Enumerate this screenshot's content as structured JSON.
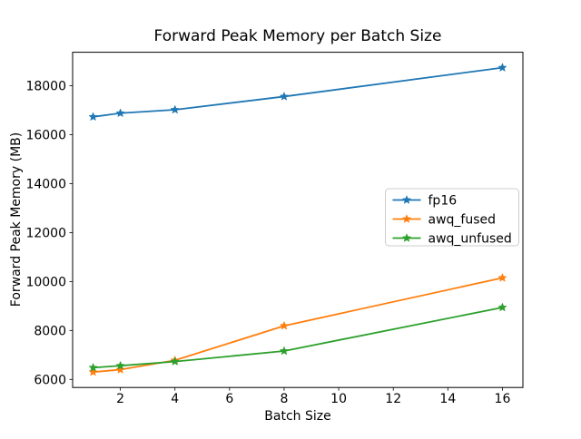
{
  "chart_data": {
    "type": "line",
    "title": "Forward Peak Memory per Batch Size",
    "xlabel": "Batch Size",
    "ylabel": "Forward Peak Memory (MB)",
    "x": [
      1,
      2,
      4,
      8,
      16
    ],
    "series": [
      {
        "name": "fp16",
        "color": "#1f77b4",
        "values": [
          16730,
          16880,
          17020,
          17560,
          18740
        ]
      },
      {
        "name": "awq_fused",
        "color": "#ff7f0e",
        "values": [
          6300,
          6400,
          6780,
          8190,
          10150
        ]
      },
      {
        "name": "awq_unfused",
        "color": "#2ca02c",
        "values": [
          6480,
          6560,
          6730,
          7160,
          8940
        ]
      }
    ],
    "marker": "star",
    "xlim": [
      0.25,
      16.75
    ],
    "ylim": [
      5670,
      19370
    ],
    "xticks": [
      2,
      4,
      6,
      8,
      10,
      12,
      14,
      16
    ],
    "yticks": [
      6000,
      8000,
      10000,
      12000,
      14000,
      16000,
      18000
    ],
    "grid": false,
    "legend_position": "center-right",
    "legend_entries": [
      "fp16",
      "awq_fused",
      "awq_unfused"
    ],
    "spine_color": "#000000",
    "legend_border_color": "#cccccc",
    "background_color": "#ffffff"
  }
}
